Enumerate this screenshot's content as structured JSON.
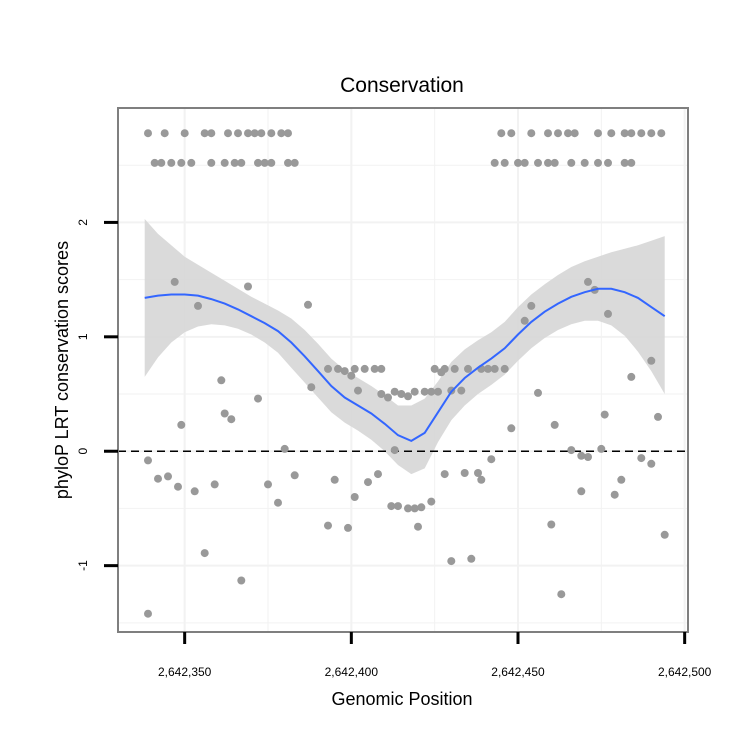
{
  "chart_data": {
    "type": "scatter",
    "title": "Conservation",
    "xlabel": "Genomic Position",
    "ylabel": "phyloP LRT conservation scores",
    "xlim": [
      2642330,
      2642501
    ],
    "ylim": [
      -1.58,
      3.0
    ],
    "x_ticks": [
      2642350,
      2642400,
      2642450,
      2642500
    ],
    "x_tick_labels": [
      "2,642,350",
      "2,642,400",
      "2,642,450",
      "2,642,500"
    ],
    "y_ticks": [
      -1,
      0,
      1,
      2
    ],
    "y_tick_labels": [
      "-1",
      "0",
      "1",
      "2"
    ],
    "reference_line": {
      "y": 0,
      "style": "dashed"
    },
    "colors": {
      "points": "#999999",
      "smooth": "#3366ff",
      "ribbon": "#d6d6d6",
      "grid": "#f2f2f2",
      "panel_border": "#7f7f7f"
    },
    "points": [
      [
        2642339,
        2.78
      ],
      [
        2642344,
        2.78
      ],
      [
        2642350,
        2.78
      ],
      [
        2642356,
        2.78
      ],
      [
        2642358,
        2.78
      ],
      [
        2642363,
        2.78
      ],
      [
        2642366,
        2.78
      ],
      [
        2642369,
        2.78
      ],
      [
        2642371,
        2.78
      ],
      [
        2642373,
        2.78
      ],
      [
        2642376,
        2.78
      ],
      [
        2642379,
        2.78
      ],
      [
        2642381,
        2.78
      ],
      [
        2642341,
        2.52
      ],
      [
        2642343,
        2.52
      ],
      [
        2642346,
        2.52
      ],
      [
        2642349,
        2.52
      ],
      [
        2642352,
        2.52
      ],
      [
        2642358,
        2.52
      ],
      [
        2642362,
        2.52
      ],
      [
        2642365,
        2.52
      ],
      [
        2642367,
        2.52
      ],
      [
        2642372,
        2.52
      ],
      [
        2642374,
        2.52
      ],
      [
        2642376,
        2.52
      ],
      [
        2642381,
        2.52
      ],
      [
        2642383,
        2.52
      ],
      [
        2642445,
        2.78
      ],
      [
        2642448,
        2.78
      ],
      [
        2642454,
        2.78
      ],
      [
        2642459,
        2.78
      ],
      [
        2642462,
        2.78
      ],
      [
        2642465,
        2.78
      ],
      [
        2642467,
        2.78
      ],
      [
        2642474,
        2.78
      ],
      [
        2642478,
        2.78
      ],
      [
        2642482,
        2.78
      ],
      [
        2642484,
        2.78
      ],
      [
        2642487,
        2.78
      ],
      [
        2642490,
        2.78
      ],
      [
        2642493,
        2.78
      ],
      [
        2642443,
        2.52
      ],
      [
        2642446,
        2.52
      ],
      [
        2642450,
        2.52
      ],
      [
        2642452,
        2.52
      ],
      [
        2642456,
        2.52
      ],
      [
        2642459,
        2.52
      ],
      [
        2642461,
        2.52
      ],
      [
        2642466,
        2.52
      ],
      [
        2642470,
        2.52
      ],
      [
        2642474,
        2.52
      ],
      [
        2642477,
        2.52
      ],
      [
        2642482,
        2.52
      ],
      [
        2642484,
        2.52
      ],
      [
        2642347,
        1.48
      ],
      [
        2642354,
        1.27
      ],
      [
        2642369,
        1.44
      ],
      [
        2642387,
        1.28
      ],
      [
        2642471,
        1.48
      ],
      [
        2642473,
        1.41
      ],
      [
        2642477,
        1.2
      ],
      [
        2642454,
        1.27
      ],
      [
        2642452,
        1.14
      ],
      [
        2642393,
        0.72
      ],
      [
        2642396,
        0.72
      ],
      [
        2642401,
        0.72
      ],
      [
        2642404,
        0.72
      ],
      [
        2642407,
        0.72
      ],
      [
        2642409,
        0.72
      ],
      [
        2642425,
        0.72
      ],
      [
        2642428,
        0.72
      ],
      [
        2642431,
        0.72
      ],
      [
        2642435,
        0.72
      ],
      [
        2642439,
        0.72
      ],
      [
        2642441,
        0.72
      ],
      [
        2642443,
        0.72
      ],
      [
        2642446,
        0.72
      ],
      [
        2642427,
        0.69
      ],
      [
        2642398,
        0.7
      ],
      [
        2642400,
        0.66
      ],
      [
        2642361,
        0.62
      ],
      [
        2642388,
        0.56
      ],
      [
        2642402,
        0.53
      ],
      [
        2642430,
        0.53
      ],
      [
        2642433,
        0.53
      ],
      [
        2642456,
        0.51
      ],
      [
        2642409,
        0.5
      ],
      [
        2642411,
        0.47
      ],
      [
        2642413,
        0.52
      ],
      [
        2642415,
        0.5
      ],
      [
        2642417,
        0.48
      ],
      [
        2642419,
        0.52
      ],
      [
        2642422,
        0.52
      ],
      [
        2642424,
        0.52
      ],
      [
        2642426,
        0.52
      ],
      [
        2642372,
        0.46
      ],
      [
        2642362,
        0.33
      ],
      [
        2642364,
        0.28
      ],
      [
        2642349,
        0.23
      ],
      [
        2642461,
        0.23
      ],
      [
        2642448,
        0.2
      ],
      [
        2642476,
        0.32
      ],
      [
        2642484,
        0.65
      ],
      [
        2642490,
        0.79
      ],
      [
        2642492,
        0.3
      ],
      [
        2642339,
        -0.08
      ],
      [
        2642342,
        -0.24
      ],
      [
        2642345,
        -0.22
      ],
      [
        2642348,
        -0.31
      ],
      [
        2642353,
        -0.35
      ],
      [
        2642359,
        -0.29
      ],
      [
        2642375,
        -0.29
      ],
      [
        2642380,
        0.02
      ],
      [
        2642383,
        -0.21
      ],
      [
        2642378,
        -0.45
      ],
      [
        2642395,
        -0.25
      ],
      [
        2642401,
        -0.4
      ],
      [
        2642405,
        -0.27
      ],
      [
        2642408,
        -0.2
      ],
      [
        2642413,
        0.01
      ],
      [
        2642428,
        -0.2
      ],
      [
        2642434,
        -0.19
      ],
      [
        2642438,
        -0.19
      ],
      [
        2642439,
        -0.25
      ],
      [
        2642442,
        -0.07
      ],
      [
        2642466,
        0.01
      ],
      [
        2642469,
        -0.04
      ],
      [
        2642471,
        -0.05
      ],
      [
        2642475,
        0.02
      ],
      [
        2642479,
        -0.38
      ],
      [
        2642481,
        -0.25
      ],
      [
        2642487,
        -0.06
      ],
      [
        2642490,
        -0.11
      ],
      [
        2642469,
        -0.35
      ],
      [
        2642393,
        -0.65
      ],
      [
        2642399,
        -0.67
      ],
      [
        2642412,
        -0.48
      ],
      [
        2642414,
        -0.48
      ],
      [
        2642417,
        -0.5
      ],
      [
        2642419,
        -0.5
      ],
      [
        2642421,
        -0.49
      ],
      [
        2642424,
        -0.44
      ],
      [
        2642420,
        -0.66
      ],
      [
        2642356,
        -0.89
      ],
      [
        2642367,
        -1.13
      ],
      [
        2642430,
        -0.96
      ],
      [
        2642436,
        -0.94
      ],
      [
        2642460,
        -0.64
      ],
      [
        2642463,
        -1.25
      ],
      [
        2642494,
        -0.73
      ],
      [
        2642339,
        -1.42
      ]
    ],
    "smooth": {
      "x": [
        2642338,
        2642342,
        2642346,
        2642350,
        2642354,
        2642358,
        2642362,
        2642366,
        2642370,
        2642374,
        2642378,
        2642382,
        2642386,
        2642390,
        2642394,
        2642398,
        2642402,
        2642406,
        2642410,
        2642414,
        2642418,
        2642422,
        2642426,
        2642430,
        2642434,
        2642438,
        2642442,
        2642446,
        2642450,
        2642454,
        2642458,
        2642462,
        2642466,
        2642470,
        2642474,
        2642478,
        2642482,
        2642486,
        2642490,
        2642494
      ],
      "y": [
        1.34,
        1.36,
        1.37,
        1.37,
        1.36,
        1.33,
        1.29,
        1.24,
        1.18,
        1.12,
        1.05,
        0.95,
        0.83,
        0.7,
        0.57,
        0.47,
        0.4,
        0.33,
        0.24,
        0.14,
        0.09,
        0.16,
        0.34,
        0.52,
        0.64,
        0.73,
        0.81,
        0.9,
        1.02,
        1.13,
        1.22,
        1.29,
        1.35,
        1.39,
        1.42,
        1.42,
        1.39,
        1.34,
        1.26,
        1.18
      ],
      "lower": [
        0.65,
        0.82,
        0.95,
        1.04,
        1.09,
        1.11,
        1.1,
        1.07,
        1.02,
        0.95,
        0.86,
        0.73,
        0.6,
        0.47,
        0.34,
        0.25,
        0.18,
        0.1,
        0.0,
        -0.12,
        -0.2,
        -0.15,
        0.08,
        0.27,
        0.4,
        0.5,
        0.58,
        0.67,
        0.79,
        0.9,
        0.99,
        1.06,
        1.11,
        1.14,
        1.14,
        1.1,
        1.01,
        0.87,
        0.7,
        0.5
      ],
      "upper": [
        2.03,
        1.9,
        1.8,
        1.7,
        1.63,
        1.56,
        1.49,
        1.42,
        1.35,
        1.29,
        1.23,
        1.16,
        1.06,
        0.94,
        0.81,
        0.71,
        0.64,
        0.57,
        0.49,
        0.4,
        0.4,
        0.46,
        0.61,
        0.78,
        0.89,
        0.97,
        1.04,
        1.13,
        1.26,
        1.37,
        1.46,
        1.54,
        1.61,
        1.66,
        1.7,
        1.74,
        1.77,
        1.8,
        1.84,
        1.88
      ]
    }
  }
}
